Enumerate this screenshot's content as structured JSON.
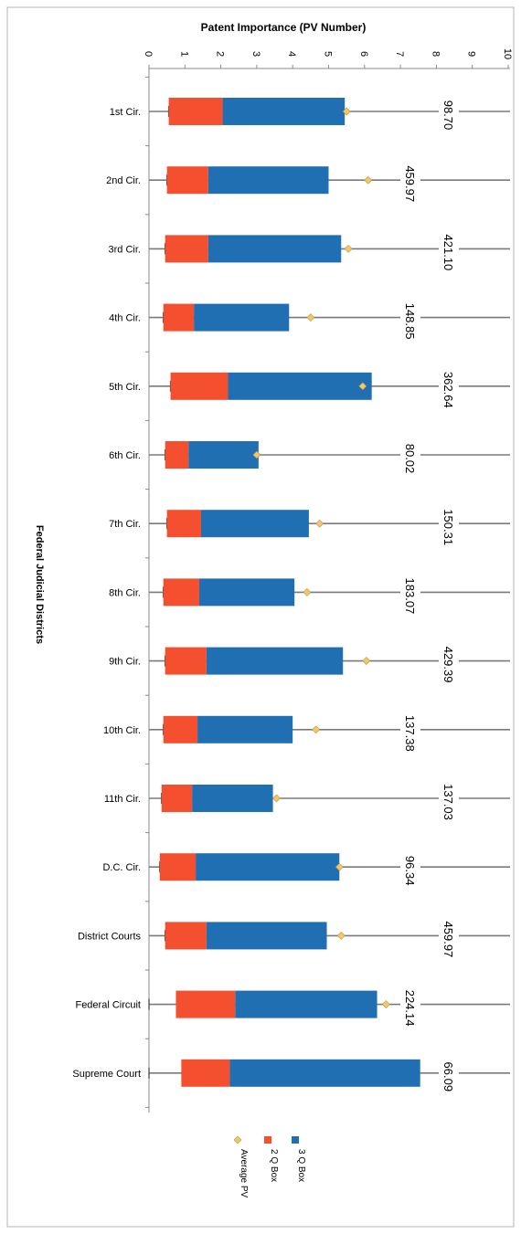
{
  "chart_data": {
    "type": "bar",
    "orientation": "horizontal-stacked-box",
    "title": "Patent Importance (PV Number)",
    "ylabel": "Federal Judicial Districts",
    "xlim": [
      0,
      10
    ],
    "x_ticks": [
      "0",
      "1",
      "2",
      "3",
      "4",
      "5",
      "6",
      "7",
      "8",
      "9",
      "10"
    ],
    "categories": [
      "1st Cir.",
      "2nd Cir.",
      "3rd Cir.",
      "4th Cir.",
      "5th Cir.",
      "6th Cir.",
      "7th Cir.",
      "8th Cir.",
      "9th Cir.",
      "10th Cir.",
      "11th Cir.",
      "D.C. Cir.",
      "District Courts",
      "Federal Circuit",
      "Supreme Court"
    ],
    "q1": [
      0.55,
      0.5,
      0.45,
      0.4,
      0.6,
      0.45,
      0.5,
      0.4,
      0.45,
      0.4,
      0.35,
      0.3,
      0.45,
      0.75,
      0.9
    ],
    "median": [
      2.05,
      1.65,
      1.65,
      1.25,
      2.2,
      1.1,
      1.45,
      1.4,
      1.6,
      1.35,
      1.2,
      1.3,
      1.6,
      2.4,
      2.25
    ],
    "q3": [
      5.45,
      5.0,
      5.35,
      3.9,
      6.2,
      3.05,
      4.45,
      4.05,
      5.4,
      4.0,
      3.45,
      5.3,
      4.95,
      6.35,
      7.55
    ],
    "average": [
      5.5,
      6.1,
      5.55,
      4.5,
      5.95,
      3.0,
      4.75,
      4.4,
      6.05,
      4.65,
      3.55,
      5.3,
      5.35,
      6.6,
      null
    ],
    "whisker_min": [
      0.55,
      0.5,
      0.45,
      0.4,
      0.6,
      0.45,
      0.5,
      0.4,
      0.45,
      0.4,
      0.35,
      0.3,
      0.45,
      0.0,
      0.0
    ],
    "max_labels": [
      "98.70",
      "459.97",
      "421.10",
      "148.85",
      "362.64",
      "80.02",
      "150.31",
      "183.07",
      "429.39",
      "137.38",
      "137.03",
      "96.34",
      "459.97",
      "224.14",
      "66.09"
    ],
    "series": [
      {
        "name": "3 Q Box",
        "color": "#1f6fb2"
      },
      {
        "name": "2 Q Box",
        "color": "#f4502f"
      },
      {
        "name": "Average PV",
        "color": "#f2c76a"
      }
    ],
    "grid": true
  }
}
